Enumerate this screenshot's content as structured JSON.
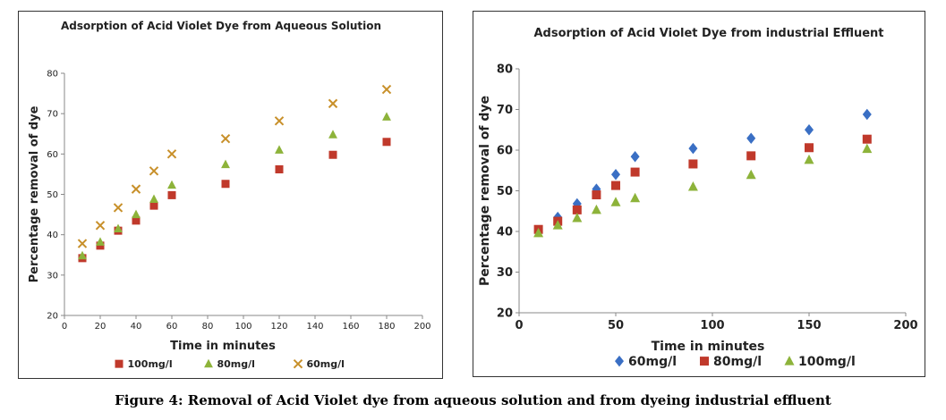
{
  "figure_caption": "Figure 4: Removal of Acid Violet dye from aqueous solution and from dyeing industrial effluent",
  "chart_data": [
    {
      "type": "scatter",
      "title": "Adsorption of Acid Violet Dye from Aqueous Solution",
      "xlabel": "Time in minutes",
      "ylabel": "Percentage removal of dye",
      "xlim": [
        0,
        200
      ],
      "ylim": [
        20,
        80
      ],
      "xticks": [
        0,
        20,
        40,
        60,
        80,
        100,
        120,
        140,
        160,
        180,
        200
      ],
      "yticks": [
        20,
        30,
        40,
        50,
        60,
        70,
        80
      ],
      "grid": false,
      "legend_position": "bottom",
      "series": [
        {
          "name": "100mg/l",
          "marker": "square",
          "color": "#c0392b",
          "x": [
            10,
            20,
            30,
            40,
            50,
            60,
            90,
            120,
            150,
            180
          ],
          "y": [
            34.2,
            37.3,
            41.0,
            43.5,
            47.2,
            49.8,
            52.6,
            56.2,
            59.8,
            63.0
          ]
        },
        {
          "name": "80mg/l",
          "marker": "triangle",
          "color": "#8db33a",
          "x": [
            10,
            20,
            30,
            40,
            50,
            60,
            90,
            120,
            150,
            180
          ],
          "y": [
            34.8,
            38.2,
            41.5,
            45.0,
            48.8,
            52.3,
            57.4,
            61.0,
            64.8,
            69.2
          ]
        },
        {
          "name": "60mg/l",
          "marker": "x",
          "color": "#c8902a",
          "x": [
            10,
            20,
            30,
            40,
            50,
            60,
            90,
            120,
            150,
            180
          ],
          "y": [
            37.8,
            42.3,
            46.7,
            51.3,
            55.8,
            60.0,
            63.8,
            68.2,
            72.5,
            76.0
          ]
        }
      ]
    },
    {
      "type": "scatter",
      "title": "Adsorption of Acid Violet Dye from industrial Effluent",
      "xlabel": "Time in minutes",
      "ylabel": "Percentage removal of dye",
      "xlim": [
        0,
        200
      ],
      "ylim": [
        20,
        80
      ],
      "xticks": [
        0,
        50,
        100,
        150,
        200
      ],
      "yticks": [
        20,
        30,
        40,
        50,
        60,
        70,
        80
      ],
      "grid": false,
      "legend_position": "bottom",
      "series": [
        {
          "name": "60mg/l",
          "marker": "diamond",
          "color": "#3a6fc4",
          "x": [
            10,
            20,
            30,
            40,
            50,
            60,
            90,
            120,
            150,
            180
          ],
          "y": [
            40.0,
            43.5,
            46.8,
            50.4,
            54.0,
            58.4,
            60.4,
            62.9,
            65.0,
            68.8
          ]
        },
        {
          "name": "80mg/l",
          "marker": "square",
          "color": "#c0392b",
          "x": [
            10,
            20,
            30,
            40,
            50,
            60,
            90,
            120,
            150,
            180
          ],
          "y": [
            40.5,
            42.5,
            45.3,
            49.0,
            51.3,
            54.6,
            56.6,
            58.6,
            60.6,
            62.7
          ]
        },
        {
          "name": "100mg/l",
          "marker": "triangle",
          "color": "#8db33a",
          "x": [
            10,
            20,
            30,
            40,
            50,
            60,
            90,
            120,
            150,
            180
          ],
          "y": [
            39.6,
            41.5,
            43.3,
            45.3,
            47.2,
            48.2,
            51.0,
            53.9,
            57.6,
            60.3
          ]
        }
      ]
    }
  ]
}
